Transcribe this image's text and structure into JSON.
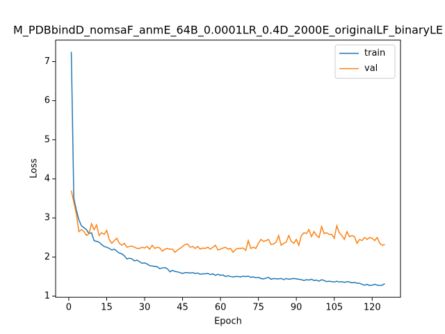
{
  "chart_data": {
    "type": "line",
    "title": "M_PDBbindD_nomsaF_anmE_64B_0.0001LR_0.4D_2000E_originalLF_binaryLE",
    "xlabel": "Epoch",
    "ylabel": "Loss",
    "x": [
      1,
      2,
      3,
      4,
      5,
      6,
      7,
      8,
      9,
      10,
      11,
      12,
      13,
      14,
      15,
      16,
      17,
      18,
      19,
      20,
      21,
      22,
      23,
      24,
      25,
      26,
      27,
      28,
      29,
      30,
      31,
      32,
      33,
      34,
      35,
      36,
      37,
      38,
      39,
      40,
      41,
      42,
      43,
      44,
      45,
      46,
      47,
      48,
      49,
      50,
      51,
      52,
      53,
      54,
      55,
      56,
      57,
      58,
      59,
      60,
      61,
      62,
      63,
      64,
      65,
      66,
      67,
      68,
      69,
      70,
      71,
      72,
      73,
      74,
      75,
      76,
      77,
      78,
      79,
      80,
      81,
      82,
      83,
      84,
      85,
      86,
      87,
      88,
      89,
      90,
      91,
      92,
      93,
      94,
      95,
      96,
      97,
      98,
      99,
      100,
      101,
      102,
      103,
      104,
      105,
      106,
      107,
      108,
      109,
      110,
      111,
      112,
      113,
      114,
      115,
      116,
      117,
      118,
      119,
      120,
      121,
      122,
      123,
      124,
      125
    ],
    "series": [
      {
        "name": "train",
        "color": "#1f77b4",
        "values": [
          7.25,
          3.5,
          3.2,
          2.95,
          2.8,
          2.75,
          2.7,
          2.6,
          2.62,
          2.42,
          2.4,
          2.38,
          2.32,
          2.27,
          2.25,
          2.22,
          2.18,
          2.2,
          2.15,
          2.1,
          2.08,
          2.03,
          1.95,
          1.97,
          1.95,
          1.9,
          1.92,
          1.88,
          1.84,
          1.85,
          1.82,
          1.78,
          1.77,
          1.76,
          1.75,
          1.7,
          1.72,
          1.73,
          1.7,
          1.62,
          1.66,
          1.63,
          1.62,
          1.6,
          1.58,
          1.6,
          1.6,
          1.59,
          1.6,
          1.58,
          1.59,
          1.56,
          1.57,
          1.57,
          1.58,
          1.55,
          1.57,
          1.53,
          1.56,
          1.53,
          1.54,
          1.5,
          1.52,
          1.5,
          1.49,
          1.5,
          1.5,
          1.49,
          1.51,
          1.5,
          1.51,
          1.48,
          1.49,
          1.47,
          1.48,
          1.45,
          1.44,
          1.46,
          1.48,
          1.43,
          1.45,
          1.44,
          1.44,
          1.45,
          1.42,
          1.45,
          1.43,
          1.44,
          1.45,
          1.44,
          1.43,
          1.42,
          1.4,
          1.42,
          1.41,
          1.43,
          1.4,
          1.41,
          1.38,
          1.42,
          1.4,
          1.37,
          1.38,
          1.37,
          1.36,
          1.38,
          1.36,
          1.37,
          1.35,
          1.37,
          1.36,
          1.34,
          1.35,
          1.33,
          1.33,
          1.3,
          1.28,
          1.3,
          1.27,
          1.28,
          1.3,
          1.28,
          1.27,
          1.28,
          1.32
        ]
      },
      {
        "name": "val",
        "color": "#ff7f0e",
        "values": [
          3.7,
          3.4,
          3.1,
          2.65,
          2.7,
          2.65,
          2.55,
          2.6,
          2.85,
          2.7,
          2.82,
          2.55,
          2.62,
          2.58,
          2.68,
          2.45,
          2.35,
          2.42,
          2.48,
          2.35,
          2.3,
          2.35,
          2.25,
          2.27,
          2.28,
          2.25,
          2.22,
          2.22,
          2.25,
          2.23,
          2.27,
          2.2,
          2.3,
          2.22,
          2.25,
          2.23,
          2.15,
          2.2,
          2.22,
          2.2,
          2.2,
          2.12,
          2.18,
          2.22,
          2.27,
          2.32,
          2.33,
          2.25,
          2.27,
          2.22,
          2.27,
          2.2,
          2.23,
          2.22,
          2.25,
          2.2,
          2.25,
          2.3,
          2.18,
          2.2,
          2.23,
          2.25,
          2.2,
          2.22,
          2.12,
          2.2,
          2.22,
          2.22,
          2.23,
          2.17,
          2.42,
          2.22,
          2.25,
          2.22,
          2.35,
          2.45,
          2.4,
          2.42,
          2.45,
          2.32,
          2.33,
          2.38,
          2.55,
          2.3,
          2.35,
          2.38,
          2.55,
          2.4,
          2.35,
          2.45,
          2.3,
          2.55,
          2.62,
          2.6,
          2.7,
          2.52,
          2.65,
          2.55,
          2.5,
          2.78,
          2.6,
          2.62,
          2.58,
          2.58,
          2.48,
          2.8,
          2.62,
          2.55,
          2.45,
          2.65,
          2.52,
          2.55,
          2.52,
          2.35,
          2.45,
          2.42,
          2.5,
          2.45,
          2.5,
          2.48,
          2.42,
          2.5,
          2.35,
          2.3,
          2.32
        ]
      }
    ],
    "xlim": [
      -5.2,
      131.2
    ],
    "ylim": [
      0.97,
      7.55
    ],
    "xticks": [
      0,
      15,
      30,
      45,
      60,
      75,
      90,
      105,
      120
    ],
    "yticks": [
      1,
      2,
      3,
      4,
      5,
      6,
      7
    ],
    "legend": "upper right"
  }
}
